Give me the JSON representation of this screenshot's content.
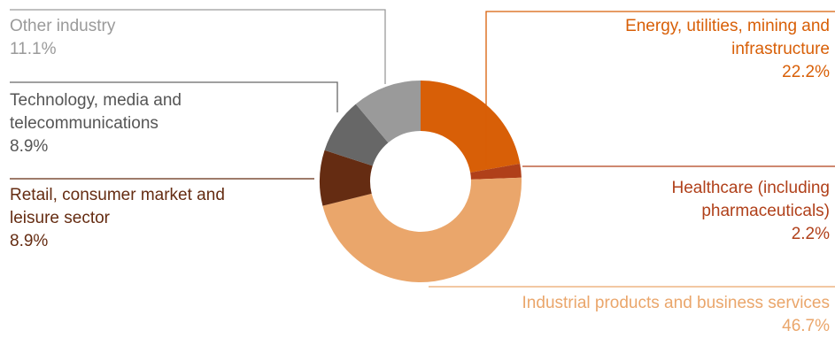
{
  "chart_data": {
    "type": "pie",
    "variant": "donut",
    "slices": [
      {
        "label_lines": [
          "Energy, utilities, mining and",
          "infrastructure"
        ],
        "value": 22.2,
        "value_label": "22.2%",
        "color": "#d85f07"
      },
      {
        "label_lines": [
          "Healthcare (including",
          "pharmaceuticals)"
        ],
        "value": 2.2,
        "value_label": "2.2%",
        "color": "#b0401a"
      },
      {
        "label_lines": [
          "Industrial products and business services"
        ],
        "value": 46.7,
        "value_label": "46.7%",
        "color": "#eaa66b"
      },
      {
        "label_lines": [
          "Retail, consumer market and",
          "leisure sector"
        ],
        "value": 8.9,
        "value_label": "8.9%",
        "color": "#652c12"
      },
      {
        "label_lines": [
          "Technology, media and",
          "telecommunications"
        ],
        "value": 8.9,
        "value_label": "8.9%",
        "color": "#676767"
      },
      {
        "label_lines": [
          "Other industry"
        ],
        "value": 11.1,
        "value_label": "11.1%",
        "color": "#9a9a9a"
      }
    ],
    "start": "12 o'clock",
    "direction": "clockwise"
  }
}
